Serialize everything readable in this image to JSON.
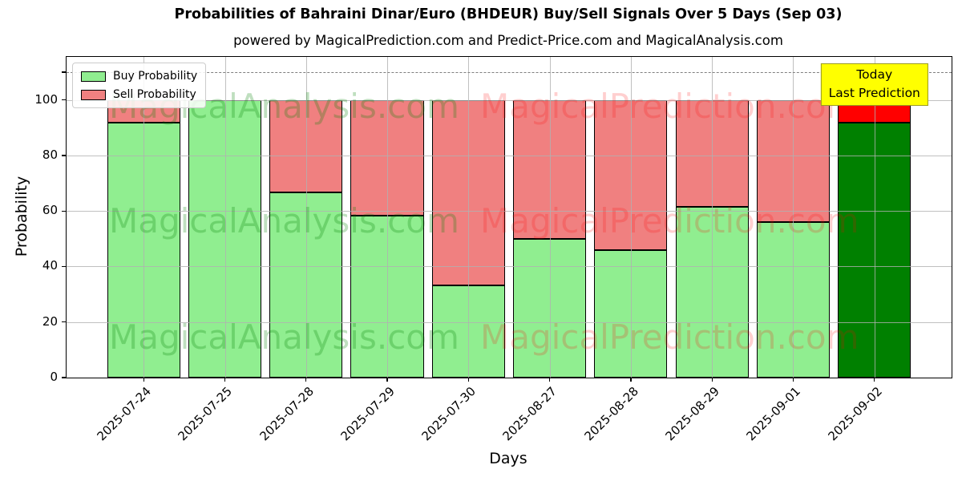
{
  "figure": {
    "title": "Probabilities of Bahraini Dinar/Euro (BHDEUR) Buy/Sell Signals Over 5 Days (Sep 03)",
    "subtitle": "powered by MagicalPrediction.com and Predict-Price.com and MagicalAnalysis.com"
  },
  "legend": {
    "items": [
      {
        "label": "Buy Probability",
        "color": "#90ee90"
      },
      {
        "label": "Sell Probability",
        "color": "#f08080"
      }
    ]
  },
  "annotation": {
    "line1": "Today",
    "line2": "Last Prediction",
    "bg_color": "#ffff00",
    "border_color": "#9a9a20"
  },
  "watermarks": {
    "left_text": "MagicalAnalysis.com",
    "right_text": "MagicalPrediction.com",
    "left_color": "rgba(0,128,0,0.25)",
    "right_color": "rgba(255,0,0,0.19)"
  },
  "chart_data": {
    "type": "bar",
    "stacked": true,
    "title": "Probabilities of Bahraini Dinar/Euro (BHDEUR) Buy/Sell Signals Over 5 Days (Sep 03)",
    "xlabel": "Days",
    "ylabel": "Probability",
    "categories": [
      "2025-07-24",
      "2025-07-25",
      "2025-07-28",
      "2025-07-29",
      "2025-07-30",
      "2025-08-27",
      "2025-08-28",
      "2025-08-29",
      "2025-09-01",
      "2025-09-02"
    ],
    "series": [
      {
        "name": "Buy Probability",
        "color": "#90ee90",
        "today_color": "#008000",
        "values": [
          91.7,
          100,
          66.7,
          58.3,
          33.3,
          50,
          46,
          61.5,
          56,
          91.7
        ]
      },
      {
        "name": "Sell Probability",
        "color": "#f08080",
        "today_color": "#ff0000",
        "values": [
          8.3,
          0,
          33.3,
          41.7,
          66.7,
          50,
          54,
          38.5,
          44,
          8.3
        ]
      }
    ],
    "today_index": 9,
    "ylim": [
      0,
      115.5
    ],
    "yticks": [
      0,
      20,
      40,
      60,
      80,
      100
    ],
    "extra_ytick": 110,
    "dashed_line_y": 110,
    "grid": true,
    "legend_position": "upper left",
    "bar_edge_color": "#000000"
  }
}
